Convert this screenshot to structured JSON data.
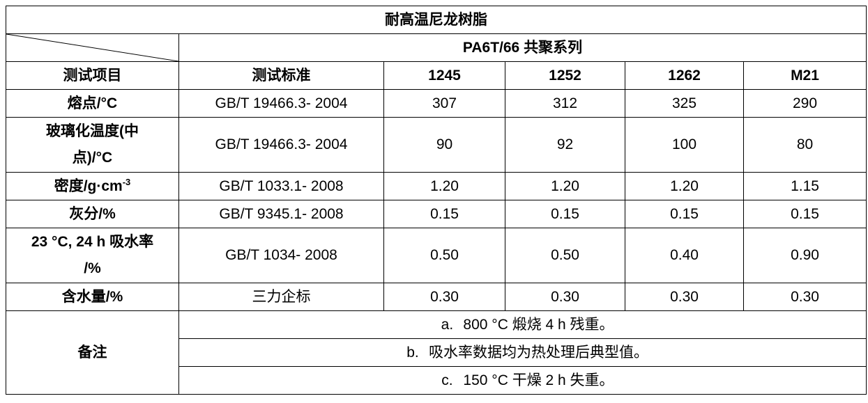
{
  "table": {
    "title": "耐高温尼龙树脂",
    "series": "PA6T/66 共聚系列",
    "headers": {
      "item": "测试项目",
      "standard": "测试标准",
      "grades": [
        "1245",
        "1252",
        "1262",
        "M21"
      ]
    },
    "rows": [
      {
        "item": "熔点/°C",
        "standard": "GB/T 19466.3- 2004",
        "values": [
          "307",
          "312",
          "325",
          "290"
        ]
      },
      {
        "item_line1": "玻璃化温度(中",
        "item_line2": "点)/°C",
        "standard": "GB/T 19466.3- 2004",
        "values": [
          "90",
          "92",
          "100",
          "80"
        ]
      },
      {
        "item": "密度/g·cm",
        "item_sup": "-3",
        "standard": "GB/T 1033.1- 2008",
        "values": [
          "1.20",
          "1.20",
          "1.20",
          "1.15"
        ]
      },
      {
        "item": "灰分/%",
        "standard": "GB/T 9345.1- 2008",
        "values": [
          "0.15",
          "0.15",
          "0.15",
          "0.15"
        ]
      },
      {
        "item_line1": "23 °C, 24 h 吸水率",
        "item_line2": "/%",
        "standard": "GB/T 1034- 2008",
        "values": [
          "0.50",
          "0.50",
          "0.40",
          "0.90"
        ]
      },
      {
        "item": "含水量/%",
        "standard": "三力企标",
        "values": [
          "0.30",
          "0.30",
          "0.30",
          "0.30"
        ]
      }
    ],
    "notes": {
      "label": "备注",
      "items": [
        {
          "letter": "a.",
          "text": "800 °C 煅烧 4 h 残重。"
        },
        {
          "letter": "b.",
          "text": "吸水率数据均为热处理后典型值。"
        },
        {
          "letter": "c.",
          "text": "150 °C 干燥 2 h 失重。"
        }
      ]
    }
  }
}
